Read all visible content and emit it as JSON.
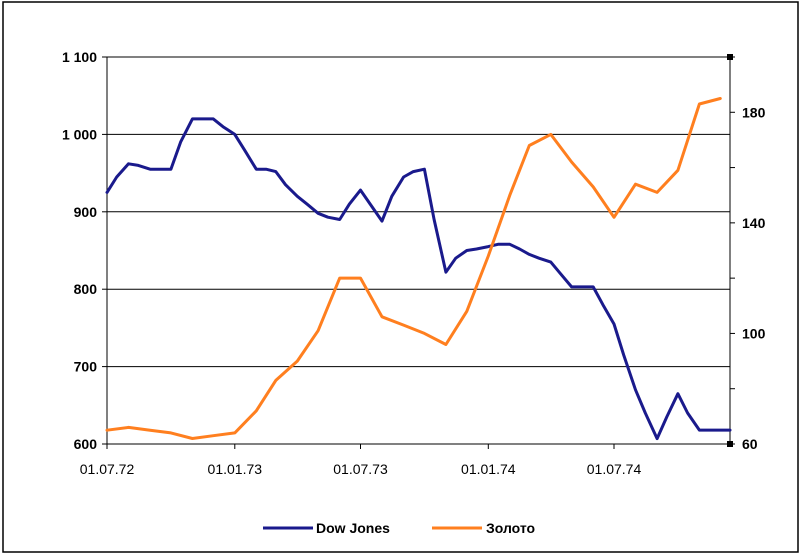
{
  "chart_data": {
    "type": "line",
    "title": "",
    "xlabel": "",
    "ylabel": "",
    "x_tick_labels": [
      "01.07.72",
      "01.01.73",
      "01.07.73",
      "01.01.74",
      "01.07.74"
    ],
    "y_left": {
      "ylim": [
        600,
        1100
      ],
      "tick_labels": [
        "600",
        "700",
        "800",
        "900",
        "1 000",
        "1 100"
      ]
    },
    "y_right": {
      "ylim": [
        60,
        200
      ],
      "tick_labels": [
        "60",
        "100",
        "140",
        "180"
      ]
    },
    "grid": "horizontal",
    "legend_placement": "bottom",
    "series": [
      {
        "name": "Dow Jones",
        "axis": "left",
        "color": "#1a1a8c",
        "x": [
          "1972-07-01",
          "1972-07-15",
          "1972-08-01",
          "1972-08-15",
          "1972-09-01",
          "1972-09-15",
          "1972-10-01",
          "1972-10-15",
          "1972-11-01",
          "1972-11-15",
          "1972-12-01",
          "1972-12-15",
          "1973-01-01",
          "1973-01-15",
          "1973-02-01",
          "1973-02-15",
          "1973-03-01",
          "1973-03-15",
          "1973-04-01",
          "1973-04-15",
          "1973-05-01",
          "1973-05-15",
          "1973-06-01",
          "1973-06-15",
          "1973-07-01",
          "1973-07-15",
          "1973-08-01",
          "1973-08-15",
          "1973-09-01",
          "1973-09-15",
          "1973-10-01",
          "1973-10-15",
          "1973-11-01",
          "1973-11-15",
          "1973-12-01",
          "1973-12-15",
          "1974-01-01",
          "1974-01-15",
          "1974-02-01",
          "1974-02-15",
          "1974-03-01",
          "1974-03-15",
          "1974-04-01",
          "1974-04-15",
          "1974-05-01",
          "1974-05-15",
          "1974-06-01",
          "1974-06-15",
          "1974-07-01",
          "1974-07-15",
          "1974-08-01",
          "1974-08-15",
          "1974-09-01",
          "1974-09-15",
          "1974-10-01",
          "1974-10-15",
          "1974-11-01",
          "1974-11-15",
          "1974-12-01",
          "1974-12-15"
        ],
        "values": [
          925,
          945,
          962,
          960,
          955,
          955,
          955,
          990,
          1020,
          1020,
          1020,
          1010,
          1000,
          980,
          955,
          955,
          952,
          935,
          920,
          910,
          898,
          893,
          890,
          910,
          928,
          910,
          888,
          920,
          945,
          952,
          955,
          890,
          822,
          840,
          850,
          852,
          855,
          858,
          858,
          852,
          845,
          840,
          835,
          820,
          803,
          803,
          803,
          780,
          755,
          715,
          670,
          640,
          607,
          635,
          665,
          640,
          618,
          618,
          618,
          618
        ]
      },
      {
        "name": "Золото",
        "axis": "right",
        "color": "#ff7f1f",
        "x": [
          "1972-07-01",
          "1972-08-01",
          "1972-09-01",
          "1972-10-01",
          "1972-11-01",
          "1972-12-01",
          "1973-01-01",
          "1973-02-01",
          "1973-03-01",
          "1973-04-01",
          "1973-05-01",
          "1973-06-01",
          "1973-07-01",
          "1973-08-01",
          "1973-09-01",
          "1973-10-01",
          "1973-11-01",
          "1973-12-01",
          "1974-01-01",
          "1974-02-01",
          "1974-03-01",
          "1974-04-01",
          "1974-05-01",
          "1974-06-01",
          "1974-07-01",
          "1974-08-01",
          "1974-09-01",
          "1974-10-01",
          "1974-11-01",
          "1974-12-01"
        ],
        "values": [
          65,
          66,
          65,
          64,
          62,
          63,
          64,
          72,
          83,
          90,
          101,
          120,
          120,
          106,
          103,
          100,
          96,
          108,
          128,
          150,
          168,
          172,
          162,
          153,
          142,
          154,
          151,
          159,
          183,
          185
        ]
      }
    ]
  }
}
